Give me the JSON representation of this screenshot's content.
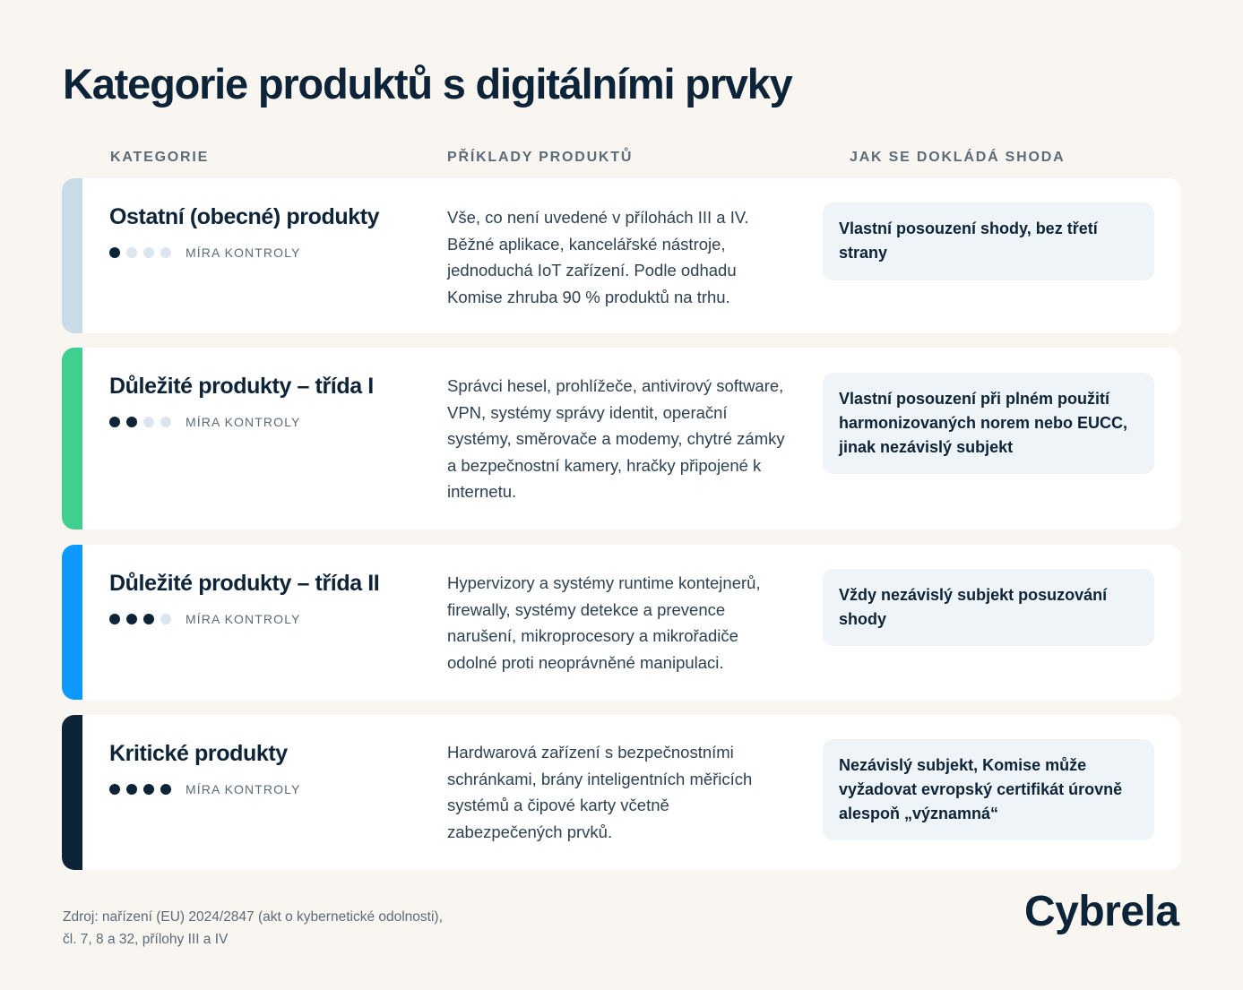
{
  "title": "Kategorie produktů s digitálními prvky",
  "columns": {
    "category": "KATEGORIE",
    "examples": "PŘÍKLADY PRODUKTŮ",
    "conformity": "JAK SE DOKLÁDÁ SHODA"
  },
  "level_label": "MÍRA KONTROLY",
  "rows": [
    {
      "name": "Ostatní (obecné) produkty",
      "level": 1,
      "level_max": 4,
      "accent_color": "#c8dbe8",
      "examples": "Vše, co není uvedené v přílohách III a IV. Běžné aplikace, kancelářské nástroje, jednoduchá IoT zařízení. Podle odhadu Komise zhruba 90 % produktů na trhu.",
      "conformity": "Vlastní posouzení shody, bez třetí strany"
    },
    {
      "name": "Důležité produkty – třída I",
      "level": 2,
      "level_max": 4,
      "accent_color": "#3fcf8e",
      "examples": "Správci hesel, prohlížeče, antivirový software, VPN, systémy správy identit, operační systémy, směrovače a modemy, chytré zámky a bezpečnostní kamery, hračky připojené k internetu.",
      "conformity": "Vlastní posouzení při plném použití harmonizovaných norem nebo EUCC, jinak nezávislý subjekt"
    },
    {
      "name": "Důležité produkty – třída II",
      "level": 3,
      "level_max": 4,
      "accent_color": "#0d99ff",
      "examples": "Hypervizory a systémy runtime kontejnerů, firewally, systémy detekce a prevence narušení, mikroprocesory a mikrořadiče odolné proti neoprávněné manipulaci.",
      "conformity": "Vždy nezávislý subjekt posuzování shody"
    },
    {
      "name": "Kritické produkty",
      "level": 4,
      "level_max": 4,
      "accent_color": "#0d2438",
      "examples": "Hardwarová zařízení s bezpečnostními schránkami, brány inteligentních měřicích systémů a čipové karty včetně zabezpečených prvků.",
      "conformity": "Nezávislý subjekt, Komise může vyžadovat evropský certifikát úrovně alespoň „významná“"
    }
  ],
  "source_line1": "Zdroj: nařízení (EU) 2024/2847 (akt o kybernetické odolnosti),",
  "source_line2": "čl. 7, 8 a 32, přílohy III a IV",
  "brand": "Cybrela"
}
